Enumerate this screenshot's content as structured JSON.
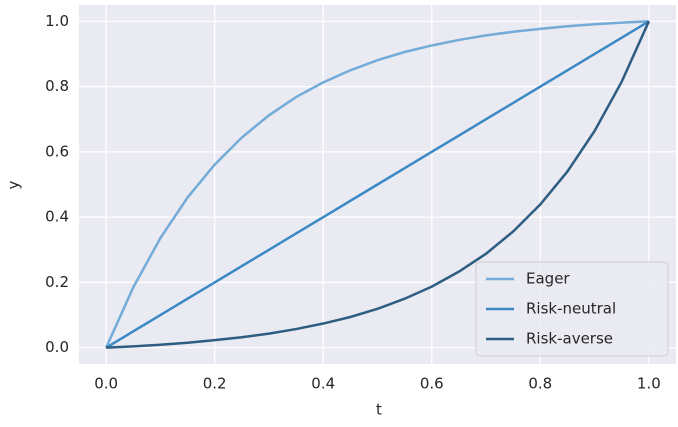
{
  "chart_data": {
    "type": "line",
    "x_label": "t",
    "y_label": "y",
    "x": [
      0,
      0.05,
      0.1,
      0.15,
      0.2,
      0.25,
      0.3,
      0.35,
      0.4,
      0.45,
      0.5,
      0.55,
      0.6,
      0.65,
      0.7,
      0.75,
      0.8,
      0.85,
      0.9,
      0.95,
      1
    ],
    "series": [
      {
        "name": "Eager",
        "color": "#73acd8",
        "values": [
          0,
          0.185,
          0.336,
          0.46,
          0.561,
          0.644,
          0.712,
          0.768,
          0.813,
          0.85,
          0.881,
          0.906,
          0.926,
          0.943,
          0.957,
          0.968,
          0.977,
          0.985,
          0.991,
          0.996,
          1
        ]
      },
      {
        "name": "Risk-neutral",
        "color": "#3a88c4",
        "values": [
          0,
          0.05,
          0.1,
          0.15,
          0.2,
          0.25,
          0.3,
          0.35,
          0.4,
          0.45,
          0.5,
          0.55,
          0.6,
          0.65,
          0.7,
          0.75,
          0.8,
          0.85,
          0.9,
          0.95,
          1
        ]
      },
      {
        "name": "Risk-averse",
        "color": "#2e5d82",
        "values": [
          0,
          0.004,
          0.009,
          0.015,
          0.023,
          0.032,
          0.043,
          0.057,
          0.074,
          0.094,
          0.119,
          0.15,
          0.187,
          0.233,
          0.288,
          0.356,
          0.439,
          0.54,
          0.664,
          0.815,
          1
        ]
      }
    ],
    "xlim": [
      -0.05,
      1.05
    ],
    "ylim": [
      -0.05,
      1.05
    ],
    "xticks": [
      {
        "value": 0,
        "label": "0.0"
      },
      0.2,
      0.4,
      0.6,
      0.8,
      {
        "value": 1,
        "label": "1.0"
      }
    ],
    "yticks": [
      {
        "value": 0,
        "label": "0.0"
      },
      0.2,
      0.4,
      0.6,
      0.8,
      {
        "value": 1,
        "label": "1.0"
      }
    ],
    "grid": true,
    "legend": "lower right"
  }
}
